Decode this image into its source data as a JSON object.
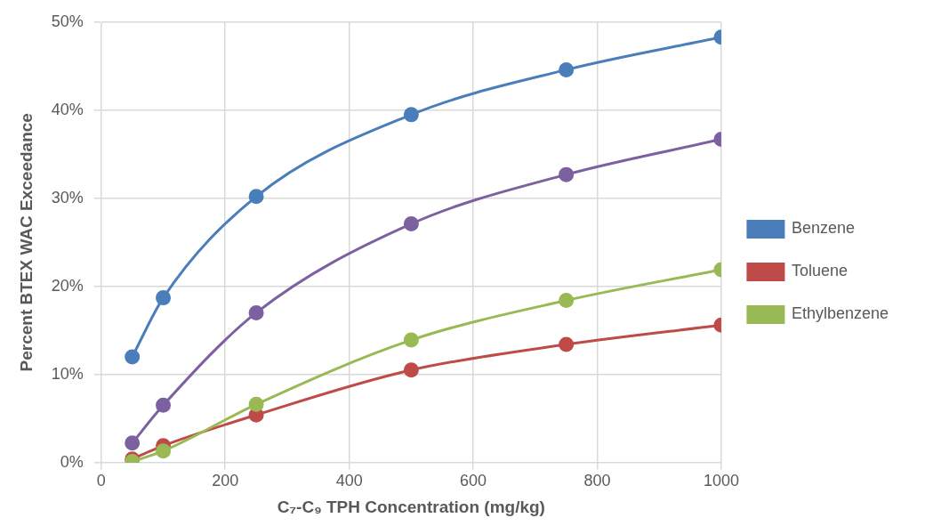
{
  "chart_data": {
    "type": "line",
    "xlabel": "C₇-C₉ TPH Concentration (mg/kg)",
    "ylabel": "Percent BTEX WAC Exceedance",
    "x": [
      50,
      100,
      250,
      500,
      750,
      1000
    ],
    "series": [
      {
        "name": "Benzene",
        "color": "#4a7ebb",
        "values": [
          12.0,
          18.7,
          30.2,
          39.5,
          44.6,
          48.3
        ]
      },
      {
        "name": "Toluene",
        "color": "#be4b48",
        "values": [
          0.4,
          1.9,
          5.4,
          10.5,
          13.4,
          15.6
        ]
      },
      {
        "name": "Ethylbenzene",
        "color": "#98b954",
        "values": [
          0.1,
          1.3,
          6.6,
          13.9,
          18.4,
          21.9
        ]
      },
      {
        "color": "#7d60a0",
        "values": [
          2.2,
          6.5,
          17.0,
          27.1,
          32.7,
          36.7
        ]
      }
    ],
    "xlim": [
      0,
      1000
    ],
    "xticks": [
      0,
      200,
      400,
      600,
      800,
      1000
    ],
    "ylim": [
      0,
      50
    ],
    "yticks": [
      {
        "value": 0,
        "label": "0%"
      },
      {
        "value": 10,
        "label": "10%"
      },
      {
        "value": 20,
        "label": "20%"
      },
      {
        "value": 30,
        "label": "30%"
      },
      {
        "value": 40,
        "label": "40%"
      },
      {
        "value": 50,
        "label": "50%"
      }
    ],
    "grid": true,
    "legend": "right",
    "marker": "circle",
    "line_style": "solid"
  }
}
